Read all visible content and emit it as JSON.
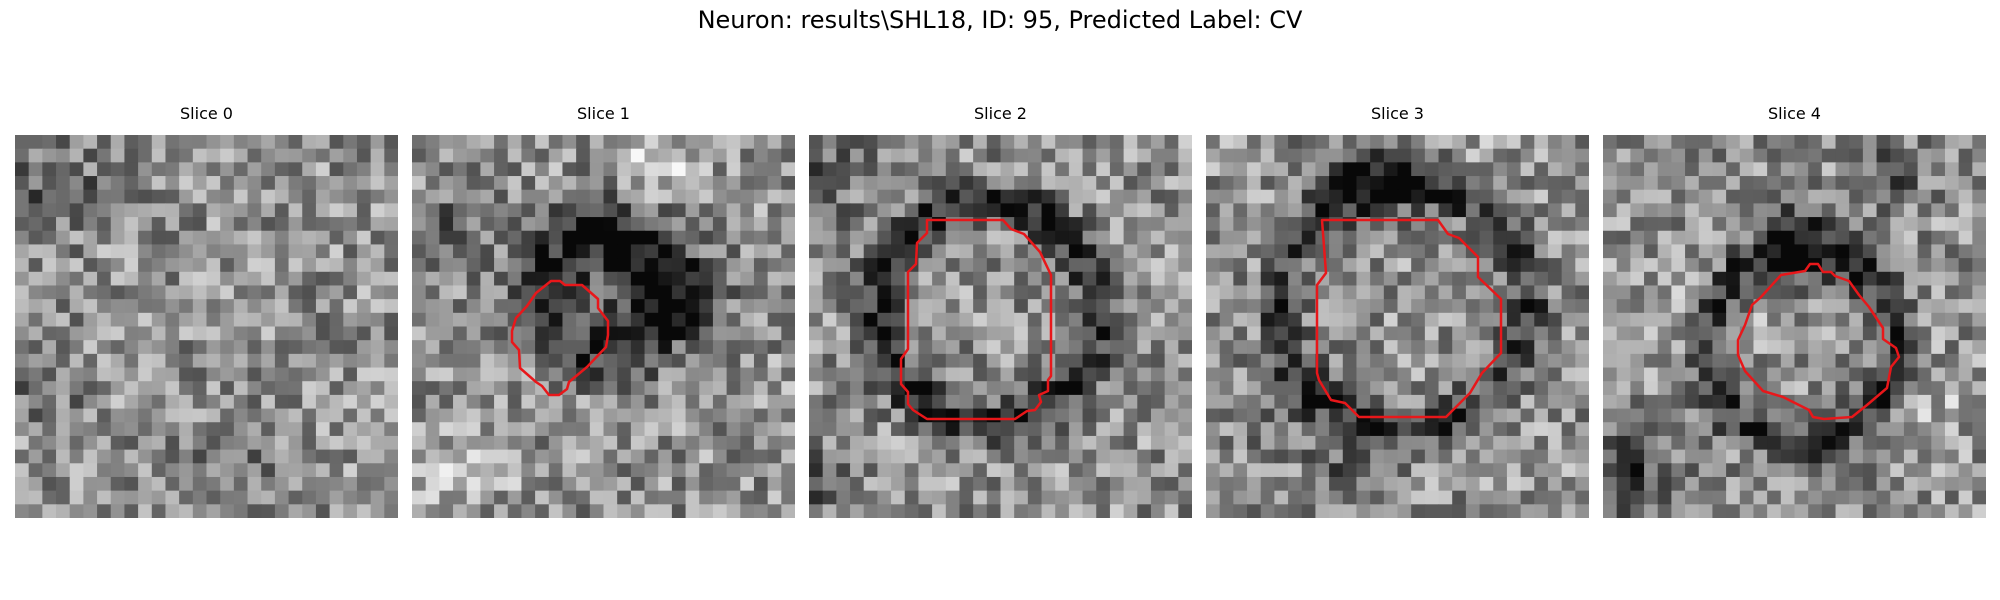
{
  "figure": {
    "title": "Neuron: results\\SHL18, ID: 95, Predicted Label: CV",
    "grid_size": 28,
    "contour_color": "#e8171a",
    "panels": [
      {
        "label": "Slice 0",
        "has_contour": false,
        "seed": 11
      },
      {
        "label": "Slice 1",
        "has_contour": true,
        "seed": 23
      },
      {
        "label": "Slice 2",
        "has_contour": true,
        "seed": 37
      },
      {
        "label": "Slice 3",
        "has_contour": true,
        "seed": 41
      },
      {
        "label": "Slice 4",
        "has_contour": true,
        "seed": 53
      }
    ]
  }
}
